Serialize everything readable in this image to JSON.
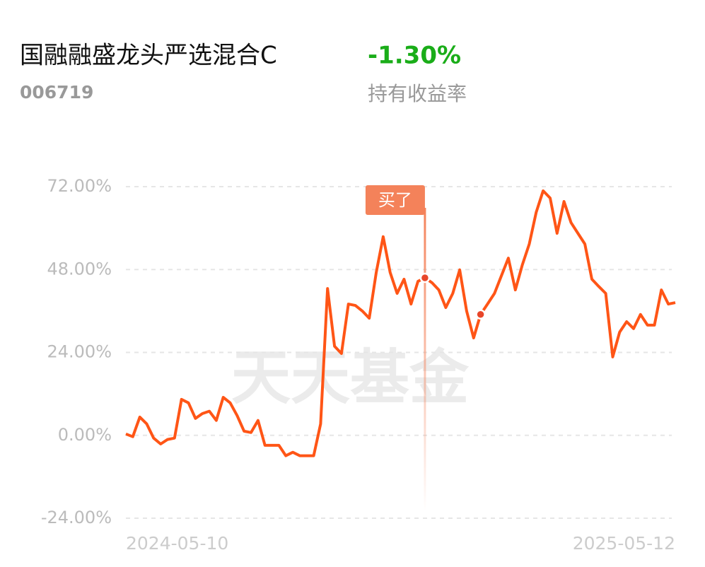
{
  "header": {
    "title": "国融融盛龙头严选混合C",
    "code": "006719",
    "return": "-1.30%",
    "return_label": "持有收益率"
  },
  "chart_data": {
    "type": "line",
    "watermark": "天天基金",
    "dot_annotation": "买了",
    "categories": [
      "2024-05-10",
      null,
      null,
      null,
      null,
      null,
      null,
      null,
      null,
      null,
      null,
      null,
      null,
      null,
      null,
      null,
      null,
      null,
      null,
      null,
      null,
      null,
      null,
      null,
      null,
      null,
      null,
      null,
      null,
      null,
      null,
      null,
      null,
      null,
      null,
      null,
      null,
      null,
      null,
      null,
      null,
      null,
      null,
      null,
      null,
      null,
      null,
      null,
      null,
      null,
      null,
      null,
      null,
      null,
      null,
      null,
      null,
      null,
      null,
      null,
      null,
      null,
      null,
      null,
      null,
      null,
      null,
      null,
      null,
      null,
      null,
      null,
      null,
      null,
      null,
      null,
      null,
      null,
      null,
      "2025-05-12"
    ],
    "series": [
      {
        "color": "#ff5516",
        "values": [
          0.4,
          -0.4,
          5.3,
          3.3,
          -0.8,
          -2.5,
          -1.2,
          -0.8,
          10.4,
          9.4,
          4.9,
          6.3,
          7.0,
          4.3,
          11.0,
          9.4,
          5.7,
          1.2,
          0.8,
          4.3,
          -2.9,
          -2.9,
          -2.9,
          -5.9,
          -4.9,
          -5.9,
          -5.9,
          -5.9,
          3.3,
          42.5,
          25.8,
          23.7,
          38.0,
          37.6,
          36.0,
          33.9,
          47.2,
          57.5,
          47.2,
          41.1,
          45.2,
          38.0,
          44.6,
          45.6,
          44.2,
          42.1,
          37.0,
          41.1,
          47.9,
          36.0,
          28.2,
          35.0,
          38.0,
          41.1,
          46.2,
          51.3,
          42.1,
          49.3,
          55.4,
          64.6,
          70.8,
          68.7,
          58.5,
          67.7,
          61.6,
          58.5,
          55.4,
          45.2,
          43.1,
          41.1,
          22.7,
          29.9,
          32.9,
          30.9,
          35.0,
          31.9,
          31.9,
          42.1,
          38.0,
          38.4
        ]
      }
    ],
    "dots": [
      null,
      null,
      null,
      null,
      null,
      null,
      null,
      null,
      null,
      null,
      null,
      null,
      null,
      null,
      null,
      null,
      null,
      null,
      null,
      null,
      null,
      null,
      null,
      null,
      null,
      null,
      null,
      null,
      null,
      null,
      null,
      null,
      null,
      null,
      null,
      null,
      null,
      null,
      null,
      null,
      null,
      null,
      null,
      45.6,
      null,
      null,
      null,
      null,
      null,
      null,
      null,
      35.0,
      null,
      null,
      null,
      null,
      null,
      null,
      null,
      null,
      null,
      null,
      null,
      null,
      null,
      null,
      null,
      null,
      null,
      null,
      null,
      null,
      null,
      null,
      null,
      null,
      null,
      null,
      null,
      null
    ],
    "dot_color": "#e8462a",
    "flag_color": "#f4825a",
    "ylim": [
      -24,
      72
    ],
    "yticks": [
      {
        "value": -24,
        "label": "-24.00%"
      },
      {
        "value": 0,
        "label": "0.00%"
      },
      {
        "value": 24,
        "label": "24.00%"
      },
      {
        "value": 48,
        "label": "48.00%"
      },
      {
        "value": 72,
        "label": "72.00%"
      }
    ],
    "grid": true
  }
}
